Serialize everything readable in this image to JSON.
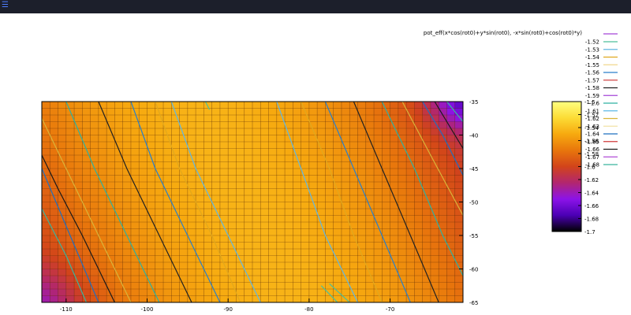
{
  "window": {
    "menu_icon": "menu-icon"
  },
  "chart_data": {
    "type": "heatmap",
    "title": "",
    "xlabel": "",
    "ylabel": "",
    "xlim": [
      -113,
      -61
    ],
    "ylim": [
      -65,
      -35
    ],
    "x_ticks": [
      "-110",
      "-100",
      "-90",
      "-80",
      "-70"
    ],
    "x_tick_values": [
      -110,
      -100,
      -90,
      -80,
      -70
    ],
    "y_ticks": [
      "-35",
      "-40",
      "-45",
      "-50",
      "-55",
      "-60",
      "-65"
    ],
    "y_tick_values": [
      -35,
      -40,
      -45,
      -50,
      -55,
      -60,
      -65
    ],
    "colorbar": {
      "range": [
        -1.7,
        -1.5
      ],
      "ticks": [
        "-1.5",
        "-1.52",
        "-1.54",
        "-1.56",
        "-1.58",
        "-1.6",
        "-1.62",
        "-1.64",
        "-1.66",
        "-1.68",
        "-1.7"
      ],
      "tick_values": [
        -1.5,
        -1.52,
        -1.54,
        -1.56,
        -1.58,
        -1.6,
        -1.62,
        -1.64,
        -1.66,
        -1.68,
        -1.7
      ],
      "colormap": [
        "#000000",
        "#4b00b4",
        "#8c13e8",
        "#b2266f",
        "#d2441a",
        "#e8760c",
        "#f7a90f",
        "#fcdc35",
        "#ffff80"
      ]
    },
    "grid": true,
    "legend": {
      "title": "pot_eff(x*cos(rot0)+y*sin(rot0), -x*sin(rot0)+cos(rot0)*y)",
      "placement": "top-right",
      "entries": [
        {
          "label": "-1.52",
          "color": "#4dbf9a"
        },
        {
          "label": "-1.53",
          "color": "#62b6e0"
        },
        {
          "label": "-1.54",
          "color": "#e0a81e"
        },
        {
          "label": "-1.55",
          "color": "#f0d78c"
        },
        {
          "label": "-1.56",
          "color": "#2a7fc9"
        },
        {
          "label": "-1.57",
          "color": "#d14646"
        },
        {
          "label": "-1.58",
          "color": "#222222"
        },
        {
          "label": "-1.59",
          "color": "#a545d8"
        },
        {
          "label": "-1.6",
          "color": "#2eb0a0"
        },
        {
          "label": "-1.61",
          "color": "#5cb8e6"
        },
        {
          "label": "-1.62",
          "color": "#d9b43a"
        },
        {
          "label": "-1.63",
          "color": "#f2e3a6"
        },
        {
          "label": "-1.64",
          "color": "#1f6fbf"
        },
        {
          "label": "-1.65",
          "color": "#d13a3a"
        },
        {
          "label": "-1.66",
          "color": "#1a1a1a"
        },
        {
          "label": "-1.67",
          "color": "#b04bd6"
        },
        {
          "label": "-1.68",
          "color": "#39b59e"
        }
      ]
    },
    "series": [
      {
        "level": -1.52,
        "points": [
          [
            -92.8,
            -35
          ],
          [
            -92.3,
            -36.2
          ]
        ]
      },
      {
        "level": -1.52,
        "points": [
          [
            -78.5,
            -62.5
          ],
          [
            -76.5,
            -65
          ]
        ]
      },
      {
        "level": -1.52,
        "points": [
          [
            -77.5,
            -62.2
          ],
          [
            -75,
            -65
          ]
        ]
      },
      {
        "level": -1.53,
        "points": [
          [
            -97,
            -35
          ],
          [
            -94,
            -45
          ],
          [
            -90,
            -55
          ],
          [
            -86,
            -65
          ]
        ]
      },
      {
        "level": -1.53,
        "points": [
          [
            -84,
            -35
          ],
          [
            -81,
            -45
          ],
          [
            -78,
            -55
          ],
          [
            -74,
            -65
          ]
        ]
      },
      {
        "level": -1.54,
        "points": [
          [
            -99,
            -35
          ],
          [
            -96,
            -45
          ],
          [
            -92,
            -55
          ],
          [
            -88.5,
            -65
          ]
        ]
      },
      {
        "level": -1.54,
        "points": [
          [
            -81,
            -35
          ],
          [
            -77.5,
            -45
          ],
          [
            -74.5,
            -55
          ],
          [
            -71,
            -65
          ]
        ]
      },
      {
        "level": -1.56,
        "points": [
          [
            -102,
            -35
          ],
          [
            -99,
            -45
          ],
          [
            -95,
            -55
          ],
          [
            -91,
            -65
          ]
        ]
      },
      {
        "level": -1.56,
        "points": [
          [
            -78,
            -35
          ],
          [
            -74.5,
            -45
          ],
          [
            -71,
            -55
          ],
          [
            -67.5,
            -65
          ]
        ]
      },
      {
        "level": -1.58,
        "points": [
          [
            -106,
            -35
          ],
          [
            -102.5,
            -45
          ],
          [
            -98.5,
            -55
          ],
          [
            -94.5,
            -65
          ]
        ]
      },
      {
        "level": -1.58,
        "points": [
          [
            -74.5,
            -35
          ],
          [
            -71,
            -45
          ],
          [
            -67.5,
            -55
          ],
          [
            -64,
            -65
          ]
        ]
      },
      {
        "level": -1.6,
        "points": [
          [
            -110,
            -35
          ],
          [
            -106.5,
            -45
          ],
          [
            -102.5,
            -55
          ],
          [
            -98.5,
            -65
          ]
        ]
      },
      {
        "level": -1.6,
        "points": [
          [
            -71,
            -35
          ],
          [
            -67,
            -45
          ],
          [
            -63.5,
            -55
          ],
          [
            -61,
            -61
          ]
        ]
      },
      {
        "level": -1.62,
        "points": [
          [
            -113,
            -37.5
          ],
          [
            -110,
            -45
          ],
          [
            -106,
            -55
          ],
          [
            -102,
            -65
          ]
        ]
      },
      {
        "level": -1.62,
        "points": [
          [
            -68.5,
            -35
          ],
          [
            -65,
            -43
          ],
          [
            -61,
            -52
          ]
        ]
      },
      {
        "level": -1.64,
        "points": [
          [
            -113,
            -45
          ],
          [
            -109.5,
            -55
          ],
          [
            -106,
            -65
          ]
        ]
      },
      {
        "level": -1.64,
        "points": [
          [
            -66,
            -35
          ],
          [
            -63.5,
            -40
          ],
          [
            -61,
            -46
          ]
        ]
      },
      {
        "level": -1.66,
        "points": [
          [
            -113,
            -43
          ],
          [
            -111,
            -48
          ],
          [
            -108,
            -55
          ],
          [
            -104,
            -65
          ]
        ]
      },
      {
        "level": -1.66,
        "points": [
          [
            -64.5,
            -35
          ],
          [
            -62.5,
            -39
          ],
          [
            -61,
            -42
          ]
        ]
      },
      {
        "level": -1.68,
        "points": [
          [
            -113,
            -51
          ],
          [
            -110,
            -58
          ],
          [
            -107.5,
            -65
          ]
        ]
      },
      {
        "level": -1.68,
        "points": [
          [
            -63,
            -35
          ],
          [
            -61,
            -38
          ]
        ]
      }
    ]
  }
}
